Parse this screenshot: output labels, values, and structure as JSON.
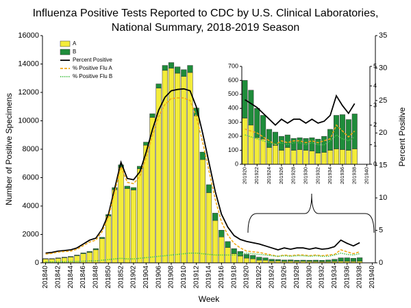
{
  "chart_data": [
    {
      "type": "bar",
      "title": [
        "Influenza Positive Tests Reported to CDC by U.S. Clinical Laboratories,",
        "National Summary,  2018-2019 Season"
      ],
      "xlabel": "Week",
      "ylabel": "Number of Positive Specimens",
      "y2label": "Percent Positive",
      "legend": "upper left",
      "categories": [
        "201840",
        null,
        "201842",
        null,
        "201844",
        null,
        "201846",
        null,
        "201848",
        null,
        "201850",
        null,
        "201852",
        null,
        "201902",
        null,
        "201904",
        null,
        "201906",
        null,
        "201908",
        null,
        "201910",
        null,
        "201912",
        null,
        "201914",
        null,
        "201916",
        null,
        "201918",
        null,
        "201920",
        null,
        "201922",
        null,
        "201924",
        null,
        "201926",
        null,
        "201928",
        null,
        "201930",
        null,
        "201932",
        null,
        "201934",
        null,
        "201936",
        null,
        "201938",
        null,
        "201940"
      ],
      "series": [
        {
          "name": "A",
          "type": "bar",
          "color": "#f3ec3a",
          "values": [
            270,
            270,
            315,
            360,
            405,
            500,
            640,
            730,
            920,
            1710,
            3290,
            5150,
            6720,
            5230,
            5130,
            6620,
            8280,
            10240,
            12300,
            13550,
            13700,
            13350,
            13120,
            13400,
            10350,
            7270,
            4940,
            2980,
            1820,
            1080,
            640,
            480,
            330,
            280,
            190,
            180,
            120,
            135,
            100,
            120,
            100,
            105,
            100,
            95,
            80,
            85,
            100,
            110,
            105,
            100,
            110,
            null,
            null
          ]
        },
        {
          "name": "B",
          "type": "bar",
          "color": "#1e8c3a",
          "values": [
            30,
            30,
            35,
            40,
            45,
            50,
            60,
            70,
            80,
            90,
            110,
            150,
            180,
            170,
            170,
            180,
            220,
            260,
            300,
            350,
            400,
            450,
            480,
            500,
            550,
            530,
            560,
            520,
            480,
            420,
            360,
            320,
            270,
            250,
            210,
            170,
            130,
            95,
            100,
            90,
            85,
            85,
            85,
            95,
            100,
            115,
            150,
            240,
            250,
            220,
            250,
            null,
            null
          ]
        },
        {
          "name": "Percent Positive",
          "type": "line",
          "axis": "y2",
          "style": "solid",
          "color": "#000000",
          "values": [
            1.5,
            1.6,
            1.8,
            1.9,
            2.0,
            2.3,
            2.9,
            3.5,
            3.8,
            5.2,
            7.5,
            11.5,
            15.5,
            13,
            12.8,
            14,
            17,
            20.5,
            23.5,
            25.5,
            26.5,
            26.7,
            26.8,
            26.5,
            24,
            20,
            15.5,
            11,
            7.5,
            5.5,
            4.2,
            3.6,
            3.3,
            3.1,
            2.9,
            2.6,
            2.3,
            2.0,
            2.3,
            2.1,
            2.3,
            2.3,
            2.1,
            2.3,
            2.1,
            2.2,
            2.5,
            3.5,
            3.0,
            2.6,
            3.1,
            null,
            null
          ]
        },
        {
          "name": "% Positive Flu A",
          "type": "line",
          "axis": "y2",
          "style": "dashed",
          "color": "#f0a818",
          "values": [
            1.35,
            1.45,
            1.65,
            1.75,
            1.8,
            2.1,
            2.65,
            3.2,
            3.5,
            4.8,
            7.0,
            10.9,
            14.8,
            12.4,
            12.2,
            13.3,
            16.2,
            19.6,
            22.5,
            24.4,
            25.3,
            25.4,
            25.4,
            25.0,
            22.5,
            18.6,
            14.2,
            9.8,
            6.3,
            4.3,
            3.0,
            2.3,
            1.8,
            1.7,
            1.6,
            1.4,
            1.2,
            1.0,
            1.2,
            1.1,
            1.2,
            1.2,
            1.1,
            1.2,
            1.1,
            1.2,
            1.3,
            2.0,
            1.7,
            1.4,
            1.7,
            null,
            null
          ]
        },
        {
          "name": "% Positive Flu B",
          "type": "line",
          "axis": "y2",
          "style": "dotted",
          "color": "#4cc24c",
          "values": [
            0.15,
            0.15,
            0.15,
            0.15,
            0.2,
            0.2,
            0.25,
            0.3,
            0.3,
            0.4,
            0.5,
            0.6,
            0.7,
            0.6,
            0.6,
            0.7,
            0.8,
            0.9,
            1.0,
            1.1,
            1.2,
            1.3,
            1.4,
            1.5,
            1.5,
            1.4,
            1.3,
            1.2,
            1.2,
            1.2,
            1.2,
            1.3,
            1.5,
            1.4,
            1.3,
            1.2,
            1.1,
            1.0,
            1.1,
            1.0,
            1.1,
            1.1,
            1.0,
            1.1,
            1.0,
            1.0,
            1.2,
            1.5,
            1.3,
            1.2,
            1.4,
            null,
            null
          ]
        }
      ],
      "ylim": [
        0,
        16000
      ],
      "yticks": [
        0,
        2000,
        4000,
        6000,
        8000,
        10000,
        12000,
        14000,
        16000
      ],
      "y2lim": [
        0,
        35
      ],
      "y2ticks": [
        0,
        5,
        10,
        15,
        20,
        25,
        30,
        35
      ]
    },
    {
      "type": "bar",
      "categories": [
        "201920",
        null,
        "201922",
        null,
        "201924",
        null,
        "201926",
        null,
        "201928",
        null,
        "201930",
        null,
        "201932",
        null,
        "201934",
        null,
        "201936",
        null,
        "201938",
        null,
        "201940"
      ],
      "series": [
        {
          "type": "bar",
          "color": "#f3ec3a",
          "values": [
            330,
            280,
            190,
            180,
            120,
            135,
            100,
            120,
            100,
            105,
            100,
            95,
            80,
            85,
            100,
            110,
            105,
            100,
            110,
            null,
            null
          ]
        },
        {
          "type": "bar",
          "color": "#1e8c3a",
          "values": [
            270,
            250,
            210,
            170,
            130,
            95,
            100,
            90,
            85,
            85,
            85,
            95,
            100,
            115,
            150,
            240,
            250,
            220,
            250,
            null,
            null
          ]
        },
        {
          "type": "line",
          "axis": "y2",
          "style": "solid",
          "color": "#000000",
          "values": [
            3.3,
            3.1,
            2.9,
            2.6,
            2.3,
            2.0,
            2.3,
            2.1,
            2.3,
            2.3,
            2.1,
            2.3,
            2.1,
            2.2,
            2.5,
            3.5,
            3.0,
            2.6,
            3.1,
            null,
            null
          ]
        },
        {
          "type": "line",
          "axis": "y2",
          "style": "dashed",
          "color": "#f0a818",
          "values": [
            1.8,
            1.7,
            1.6,
            1.4,
            1.2,
            1.0,
            1.2,
            1.1,
            1.2,
            1.2,
            1.1,
            1.2,
            1.1,
            1.2,
            1.3,
            2.0,
            1.7,
            1.4,
            1.7,
            null,
            null
          ]
        },
        {
          "type": "line",
          "axis": "y2",
          "style": "dotted",
          "color": "#4cc24c",
          "values": [
            1.5,
            1.4,
            1.3,
            1.2,
            1.1,
            1.0,
            1.1,
            1.0,
            1.1,
            1.1,
            1.0,
            1.1,
            1.0,
            1.0,
            1.2,
            1.5,
            1.3,
            1.2,
            1.4,
            null,
            null
          ]
        }
      ],
      "ylim": [
        0,
        700
      ],
      "yticks": [
        0,
        100,
        200,
        300,
        400,
        500,
        600,
        700
      ],
      "y2lim": [
        0,
        5
      ],
      "y2ticks": [
        0,
        1,
        2,
        3,
        4,
        5
      ]
    }
  ]
}
